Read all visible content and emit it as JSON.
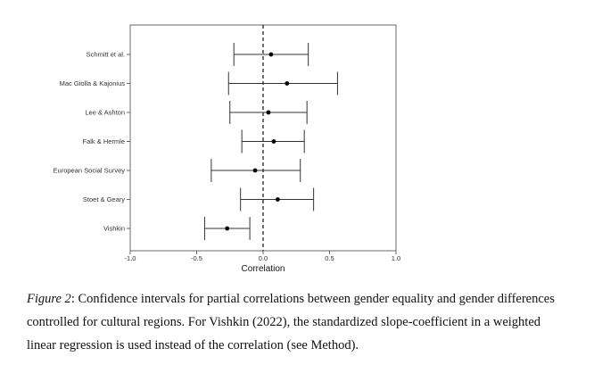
{
  "chart_data": {
    "type": "forest",
    "xlabel": "Correlation",
    "xlim": [
      -1.0,
      1.0
    ],
    "xticks": [
      "-1.0",
      "-0.5",
      "0.0",
      "0.5",
      "1.0"
    ],
    "xtick_values": [
      -1.0,
      -0.5,
      0.0,
      0.5,
      1.0
    ],
    "reference_line": 0.0,
    "grid": false,
    "series": [
      {
        "label": "Schmitt et al.",
        "estimate": 0.06,
        "lower": -0.22,
        "upper": 0.34
      },
      {
        "label": "Mac Giolla & Kajonius",
        "estimate": 0.18,
        "lower": -0.26,
        "upper": 0.56
      },
      {
        "label": "Lee & Ashton",
        "estimate": 0.04,
        "lower": -0.25,
        "upper": 0.33
      },
      {
        "label": "Falk & Hermle",
        "estimate": 0.08,
        "lower": -0.16,
        "upper": 0.31
      },
      {
        "label": "European Social Survey",
        "estimate": -0.06,
        "lower": -0.39,
        "upper": 0.28
      },
      {
        "label": "Stoet & Geary",
        "estimate": 0.11,
        "lower": -0.17,
        "upper": 0.38
      },
      {
        "label": "Vishkin",
        "estimate": -0.27,
        "lower": -0.44,
        "upper": -0.1
      }
    ]
  },
  "caption": {
    "figure_label": "Figure 2",
    "text": ": Confidence intervals for partial correlations between gender equality and gender differences controlled for cultural regions. For Vishkin (2022), the standardized slope-coefficient in a weighted linear regression is used instead of the correlation (see Method)."
  }
}
